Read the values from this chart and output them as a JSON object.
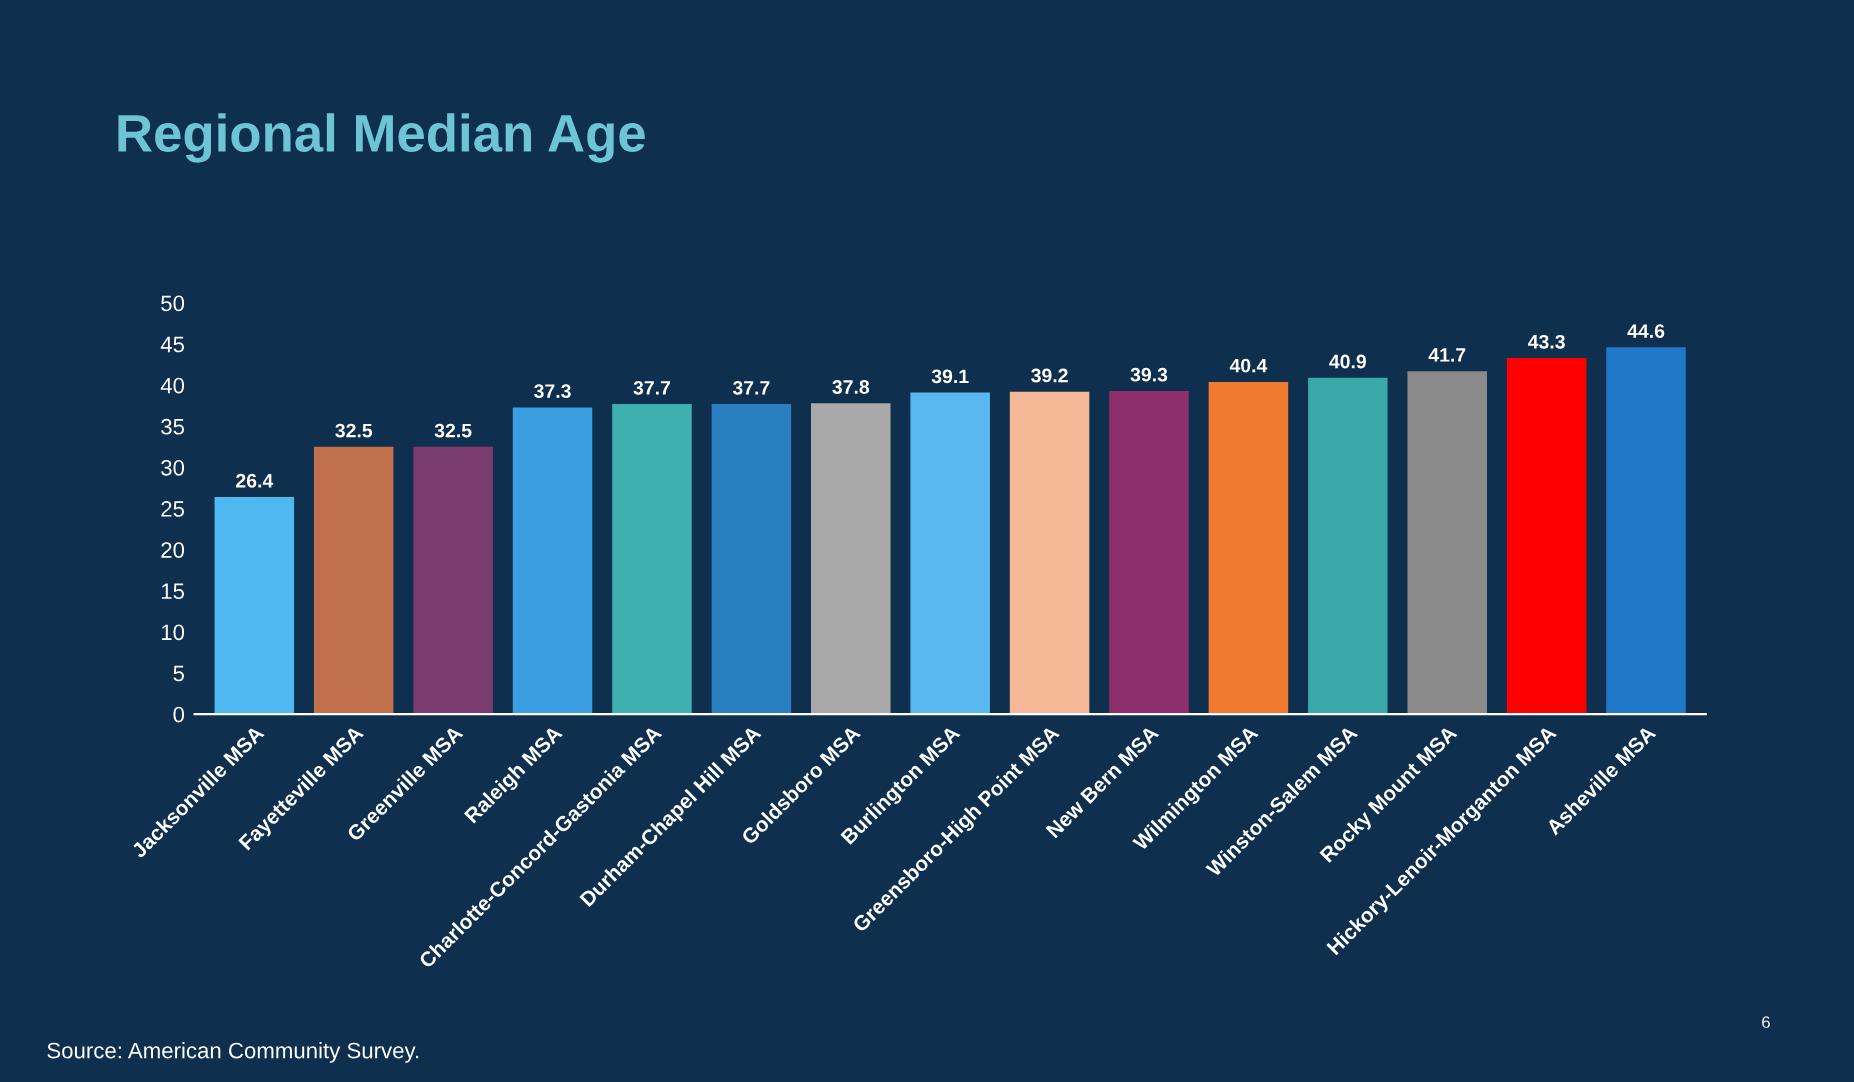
{
  "chart_data": {
    "type": "bar",
    "title": "Regional Median Age",
    "categories": [
      "Jacksonville MSA",
      "Fayetteville MSA",
      "Greenville MSA",
      "Raleigh MSA",
      "Charlotte-Concord-Gastonia MSA",
      "Durham-Chapel Hill MSA",
      "Goldsboro MSA",
      "Burlington MSA",
      "Greensboro-High Point MSA",
      "New Bern MSA",
      "Wilmington MSA",
      "Winston-Salem MSA",
      "Rocky Mount MSA",
      "Hickory-Lenoir-Morganton MSA",
      "Asheville MSA"
    ],
    "values": [
      26.4,
      32.5,
      32.5,
      37.3,
      37.7,
      37.7,
      37.8,
      39.1,
      39.2,
      39.3,
      40.4,
      40.9,
      41.7,
      43.3,
      44.6
    ],
    "colors": [
      "#4fb8ef",
      "#c0704a",
      "#7a3b6e",
      "#3a9ee0",
      "#3fb0b0",
      "#2a7fc0",
      "#a9a9a9",
      "#5ab8f0",
      "#f5b896",
      "#8c2f6a",
      "#f07a30",
      "#3aa8a8",
      "#8a8a8a",
      "#ff0000",
      "#1f78c8"
    ],
    "ylim": [
      0,
      50
    ],
    "yticks": [
      0,
      5,
      10,
      15,
      20,
      25,
      30,
      35,
      40,
      45,
      50
    ],
    "grid": false,
    "data_labels": true,
    "annotations": [
      "Source: American Community Survey.",
      "6"
    ]
  }
}
